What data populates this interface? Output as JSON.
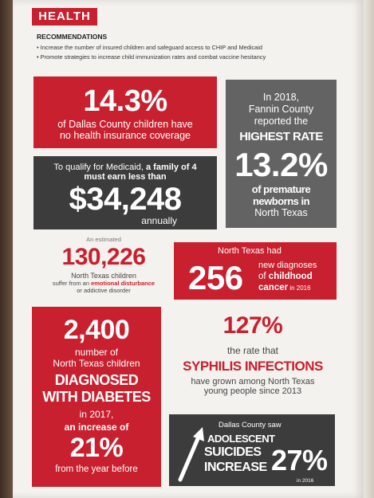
{
  "header": {
    "tag": "HEALTH",
    "recommendations_title": "RECOMMENDATIONS",
    "recommendations": [
      "• Increase the number of insured children and safeguard access to CHIP and Medicaid",
      "• Promote strategies to increase child immunization rates and combat vaccine hesitancy"
    ]
  },
  "stat1": {
    "value": "14.3%",
    "line1": "of Dallas County children have",
    "line2": "no health insurance coverage"
  },
  "stat2": {
    "l1": "In 2018,",
    "l2": "Fannin County",
    "l3": "reported the",
    "l4": "HIGHEST RATE",
    "value": "13.2%",
    "l5": "of premature",
    "l6": "newborns in",
    "l7": "North Texas"
  },
  "stat3": {
    "l1a": "To qualify for Medicaid, ",
    "l1b": "a family of 4",
    "l2": "must earn less than",
    "value": "$34,248",
    "l3": "annually"
  },
  "stat4": {
    "l1": "An estimated",
    "value": "130,226",
    "l2": "North Texas children",
    "l3a": "suffer from an ",
    "l3b": "emotional disturbance",
    "l4": "or addictive disorder"
  },
  "stat5": {
    "l1": "North Texas had",
    "value": "256",
    "l2": "new diagnoses",
    "l3a": "of ",
    "l3b": "childhood",
    "l4a": "cancer",
    "l4b": " in 2016"
  },
  "stat6": {
    "value": "2,400",
    "l1": "number of",
    "l2": "North Texas children",
    "l3": "DIAGNOSED",
    "l4": "WITH DIABETES",
    "l5": "in 2017,",
    "l6": "an increase of",
    "value2": "21%",
    "l7": "from the year before"
  },
  "stat7": {
    "value": "127%",
    "l1": "the rate that",
    "l2": "SYPHILIS INFECTIONS",
    "l3": "have grown among North Texas",
    "l4": "young people since 2013"
  },
  "stat8": {
    "l1": "Dallas County saw",
    "l2": "ADOLESCENT",
    "l3": "SUICIDES",
    "l4": "INCREASE",
    "value": "27%",
    "l5": "in 2016"
  }
}
